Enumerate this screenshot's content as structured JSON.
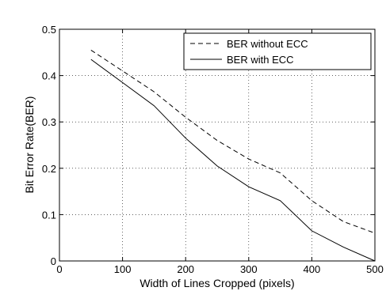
{
  "chart_data": {
    "type": "line",
    "title": "",
    "xlabel": "Width of Lines Cropped (pixels)",
    "ylabel": "Bit Error Rate(BER)",
    "xlim": [
      0,
      500
    ],
    "ylim": [
      0,
      0.5
    ],
    "xticks": [
      0,
      100,
      200,
      300,
      400,
      500
    ],
    "yticks": [
      0,
      0.1,
      0.2,
      0.3,
      0.4,
      0.5
    ],
    "xtick_labels": [
      "0",
      "100",
      "200",
      "300",
      "400",
      "500"
    ],
    "ytick_labels": [
      "0",
      "0.1",
      "0.2",
      "0.3",
      "0.4",
      "0.5"
    ],
    "grid": true,
    "legend_position": "top-right",
    "series": [
      {
        "name": "BER without ECC",
        "style": "dashed",
        "color": "#000000",
        "x": [
          50,
          100,
          150,
          200,
          250,
          300,
          350,
          400,
          450,
          500
        ],
        "y": [
          0.455,
          0.41,
          0.365,
          0.31,
          0.26,
          0.22,
          0.19,
          0.13,
          0.085,
          0.06
        ]
      },
      {
        "name": "BER with ECC",
        "style": "solid",
        "color": "#000000",
        "x": [
          50,
          100,
          150,
          200,
          250,
          300,
          350,
          400,
          450,
          500
        ],
        "y": [
          0.435,
          0.385,
          0.335,
          0.265,
          0.205,
          0.16,
          0.13,
          0.065,
          0.03,
          0.0
        ]
      }
    ]
  }
}
